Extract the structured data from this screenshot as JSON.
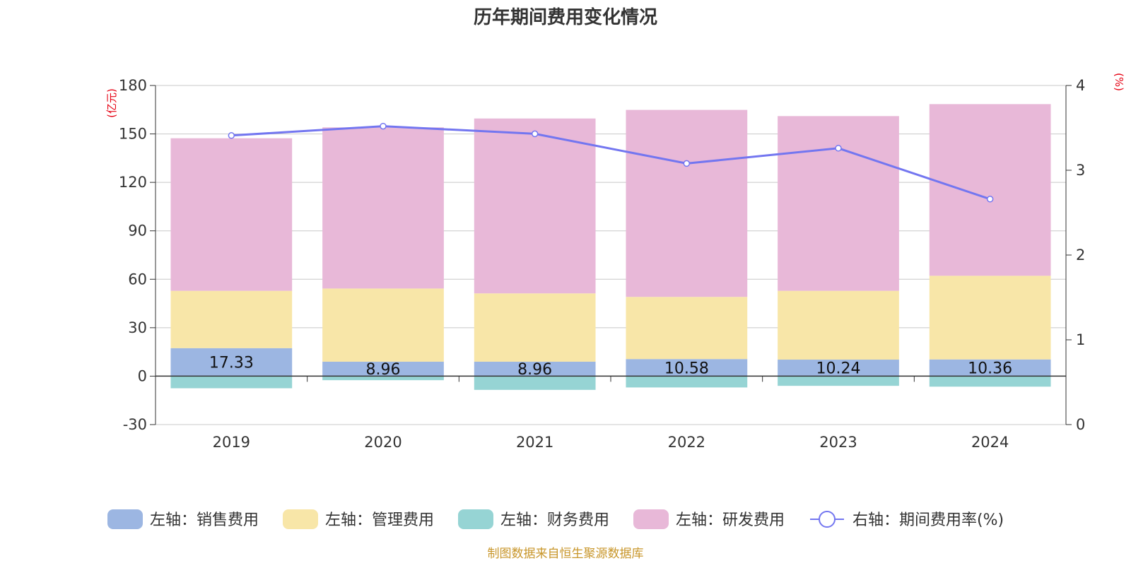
{
  "chart_data": {
    "type": "bar",
    "title": "历年期间费用变化情况",
    "categories": [
      "2019",
      "2020",
      "2021",
      "2022",
      "2023",
      "2024"
    ],
    "y_left": {
      "unit": "(亿元)",
      "ylim": [
        -30,
        180
      ],
      "ticks": [
        -30,
        0,
        30,
        60,
        90,
        120,
        150,
        180
      ]
    },
    "y_right": {
      "unit": "(%)",
      "ylim": [
        0,
        4
      ],
      "ticks": [
        0,
        1,
        2,
        3,
        4
      ]
    },
    "series": [
      {
        "name": "左轴：销售费用",
        "axis": "left",
        "color": "#9cb6e2",
        "values": [
          17.33,
          8.96,
          8.96,
          10.58,
          10.24,
          10.36
        ]
      },
      {
        "name": "左轴：管理费用",
        "axis": "left",
        "color": "#f8e6a8",
        "values": [
          35.5,
          45.3,
          42.3,
          38.5,
          42.6,
          51.8
        ]
      },
      {
        "name": "左轴：财务费用",
        "axis": "left",
        "color": "#96d4d4",
        "values": [
          -7.5,
          -2.5,
          -8.5,
          -7.0,
          -6.0,
          -6.5
        ]
      },
      {
        "name": "左轴：研发费用",
        "axis": "left",
        "color": "#e8b8d8",
        "values": [
          94.5,
          99.8,
          108.3,
          115.8,
          108.2,
          106.3
        ]
      },
      {
        "name": "右轴：期间费用率(%)",
        "axis": "right",
        "type": "line",
        "color": "#7376f0",
        "values": [
          3.41,
          3.52,
          3.43,
          3.08,
          3.26,
          2.66
        ]
      }
    ],
    "data_labels": {
      "series": "左轴：销售费用",
      "values": [
        "17.33",
        "8.96",
        "8.96",
        "10.58",
        "10.24",
        "10.36"
      ]
    },
    "grid": true,
    "legend_position": "bottom"
  },
  "source_note": "制图数据来自恒生聚源数据库"
}
